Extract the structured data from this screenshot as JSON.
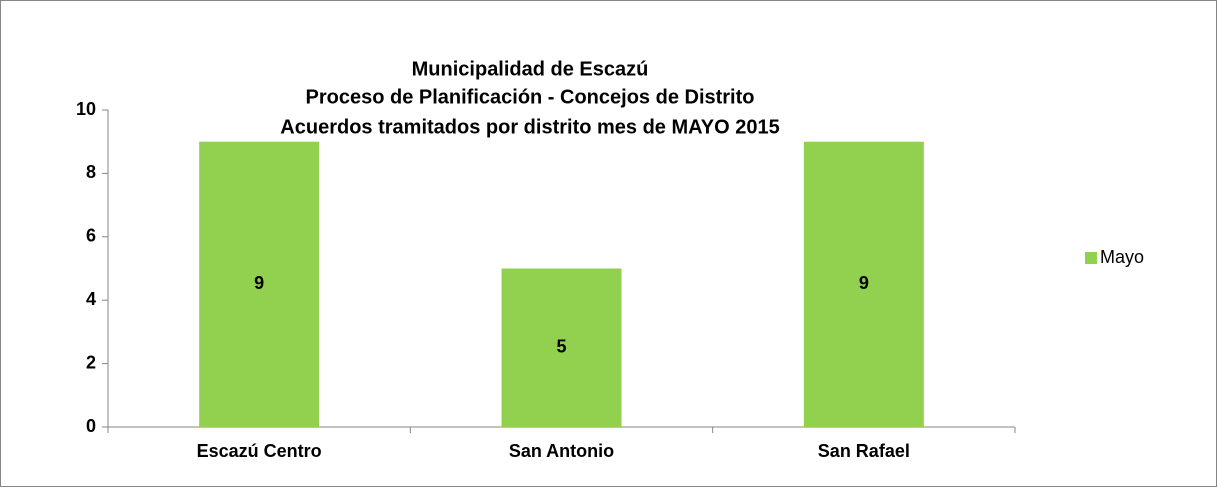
{
  "chart_data": {
    "type": "bar",
    "title": [
      "Municipalidad de Escazú",
      "Proceso de Planificación - Concejos de Distrito",
      "Acuerdos tramitados por distrito mes de MAYO 2015"
    ],
    "categories": [
      "Escazú Centro",
      "San Antonio",
      "San Rafael"
    ],
    "series": [
      {
        "name": "Mayo",
        "color": "#92d050",
        "values": [
          9,
          5,
          9
        ]
      }
    ],
    "ylim": [
      0,
      10
    ],
    "yticks": [
      0,
      2,
      4,
      6,
      8,
      10
    ],
    "grid": false,
    "legend": "right"
  }
}
